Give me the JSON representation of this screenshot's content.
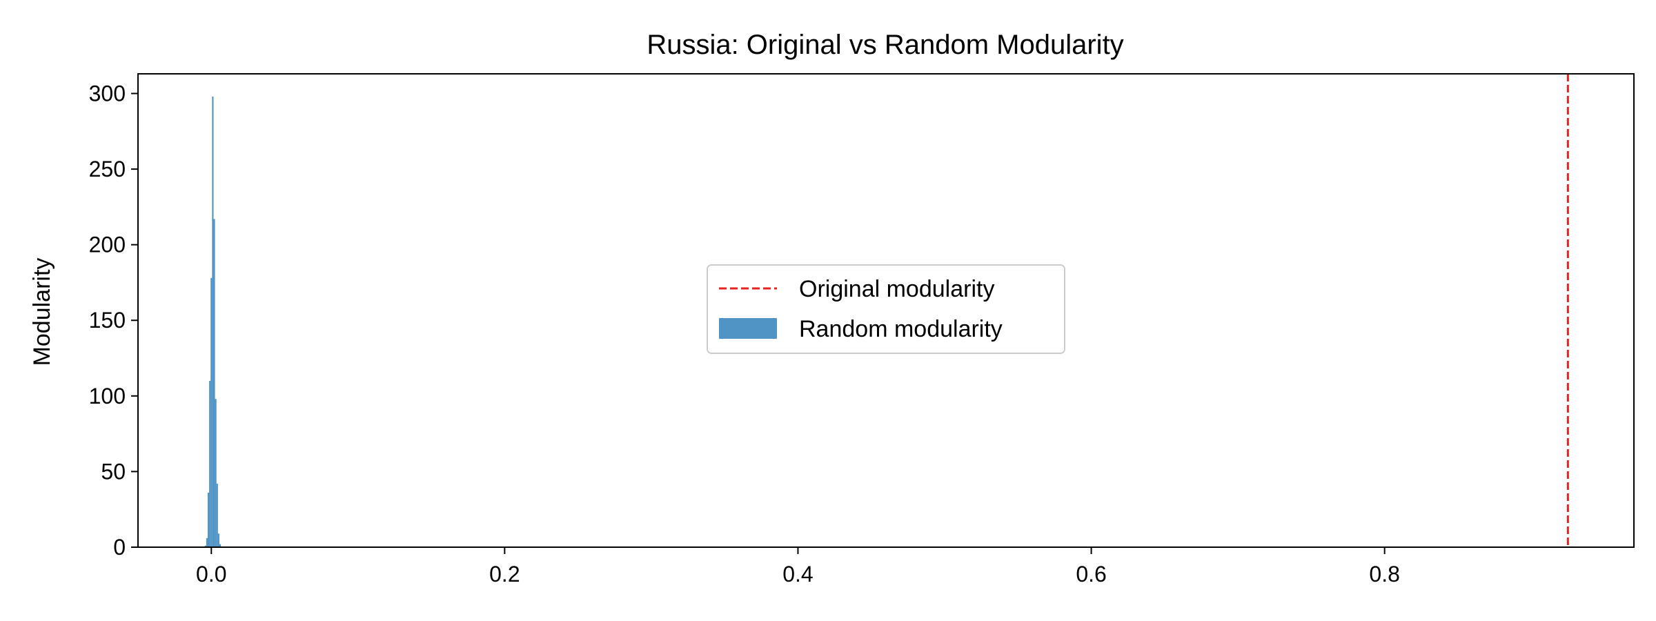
{
  "chart_data": {
    "type": "bar",
    "title": "Russia: Original vs Random Modularity",
    "xlabel": "",
    "ylabel": "Modularity",
    "xlim": [
      -0.05,
      0.97
    ],
    "ylim": [
      0,
      313
    ],
    "xticks": [
      "0.0",
      "0.2",
      "0.4",
      "0.6",
      "0.8"
    ],
    "xtick_values": [
      0.0,
      0.2,
      0.4,
      0.6,
      0.8
    ],
    "yticks": [
      "0",
      "50",
      "100",
      "150",
      "200",
      "250",
      "300"
    ],
    "ytick_values": [
      0,
      50,
      100,
      150,
      200,
      250,
      300
    ],
    "grid": false,
    "legend_position": "center",
    "series": [
      {
        "name": "Random modularity",
        "kind": "histogram",
        "color": "#5094c6",
        "bins": [
          {
            "x0": -0.0045,
            "x1": -0.0035,
            "value": 1
          },
          {
            "x0": -0.0035,
            "x1": -0.0025,
            "value": 6
          },
          {
            "x0": -0.0025,
            "x1": -0.0015,
            "value": 36
          },
          {
            "x0": -0.0015,
            "x1": -0.0005,
            "value": 110
          },
          {
            "x0": -0.0005,
            "x1": 0.0005,
            "value": 178
          },
          {
            "x0": 0.0005,
            "x1": 0.0015,
            "value": 298
          },
          {
            "x0": 0.0015,
            "x1": 0.0025,
            "value": 217
          },
          {
            "x0": 0.0025,
            "x1": 0.0035,
            "value": 98
          },
          {
            "x0": 0.0035,
            "x1": 0.0045,
            "value": 42
          },
          {
            "x0": 0.0045,
            "x1": 0.0055,
            "value": 9
          },
          {
            "x0": 0.0055,
            "x1": 0.0065,
            "value": 2
          }
        ]
      },
      {
        "name": "Original modularity",
        "kind": "vline",
        "color": "#e8231f",
        "line_style": "dashed",
        "x": 0.925
      }
    ]
  }
}
